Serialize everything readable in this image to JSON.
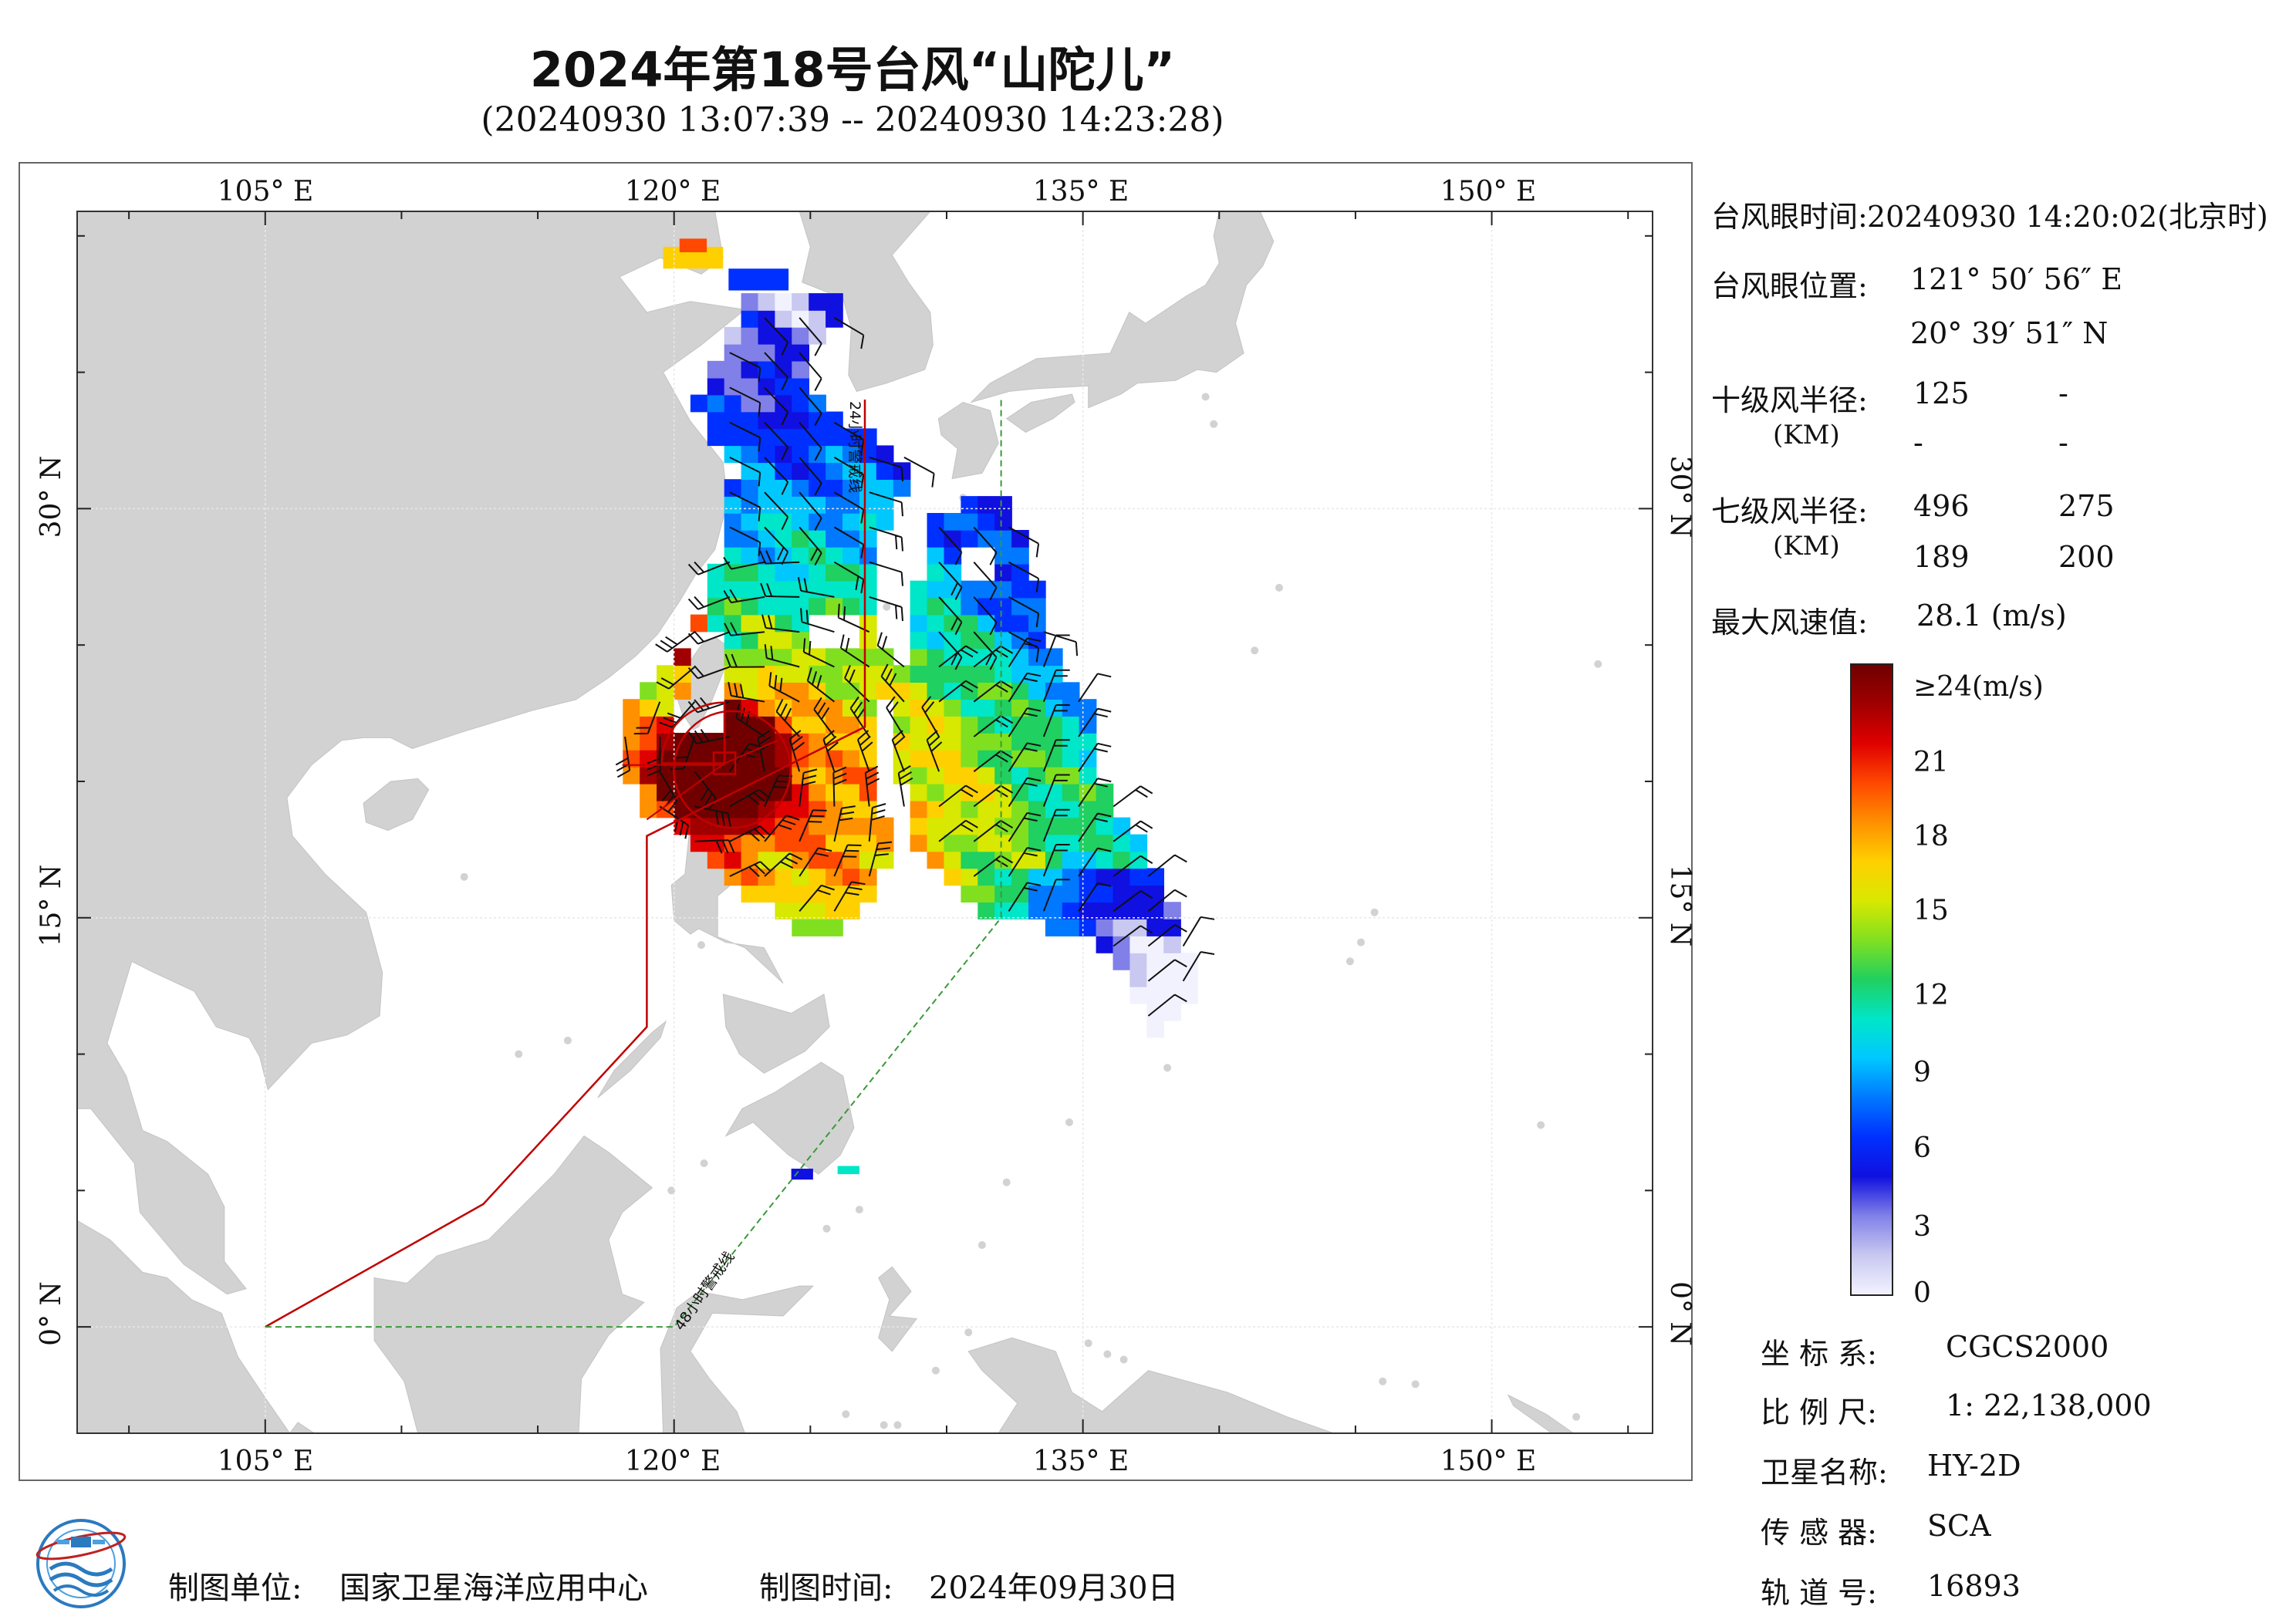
{
  "title": "2024年第18号台风“山陀儿”",
  "subtitle": "(20240930 13:07:39 -- 20240930 14:23:28)",
  "map": {
    "top_axis_labels": [
      "105° E",
      "120° E",
      "135° E",
      "150° E"
    ],
    "bottom_axis_labels": [
      "105° E",
      "120° E",
      "135° E",
      "150° E"
    ],
    "left_axis_labels": [
      "30° N",
      "15° N",
      "0° N"
    ],
    "right_axis_labels": [
      "30° N",
      "15° N",
      "0° N"
    ],
    "warning_line_24h": "24小时警戒线",
    "warning_line_48h": "48小时警戒线",
    "land_color": "#d2d2d2",
    "sea_color": "#ffffff",
    "warning_24h_color": "#c00000",
    "warning_48h_color": "#3a9a3a",
    "typhoon_eye": {
      "lon": 121.849,
      "lat": 20.664
    }
  },
  "info": {
    "eye_time_label": "台风眼时间:",
    "eye_time_value": "20240930 14:20:02(北京时)",
    "eye_pos_label": "台风眼位置:",
    "eye_lon": "121° 50′ 56″ E",
    "eye_lat": "20° 39′ 51″ N",
    "r10_label": "十级风半径:",
    "r7_label": "七级风半径:",
    "unit_km": "(KM)",
    "r10": [
      "125",
      "-",
      "-",
      "-"
    ],
    "r7": [
      "496",
      "275",
      "189",
      "200"
    ],
    "max_wind_label": "最大风速值:",
    "max_wind_value": "28.1  (m/s)"
  },
  "colorbar": {
    "labels": [
      "≥24(m/s)",
      "21",
      "18",
      "15",
      "12",
      "9",
      "6",
      "3",
      "0"
    ],
    "stops": [
      "#f2f2ff",
      "#c8c8f0",
      "#8080e8",
      "#1010e0",
      "#0030ff",
      "#0078ff",
      "#00c8ff",
      "#00e6c8",
      "#20d060",
      "#80e020",
      "#d8e800",
      "#ffd000",
      "#ff9000",
      "#ff4800",
      "#e00000",
      "#a00000",
      "#700000"
    ]
  },
  "meta": {
    "coord_label": "坐 标 系:",
    "coord_value": "CGCS2000",
    "scale_label": "比 例 尺:",
    "scale_value": "1: 22,138,000",
    "satellite_label": "卫星名称:",
    "satellite_value": "HY-2D",
    "sensor_label": "传 感 器:",
    "sensor_value": "SCA",
    "orbit_label": "轨 道 号:",
    "orbit_value": "16893"
  },
  "footer": {
    "maker_label": "制图单位:",
    "maker_value": "国家卫星海洋应用中心",
    "date_label": "制图时间:",
    "date_value": "2024年09月30日"
  }
}
